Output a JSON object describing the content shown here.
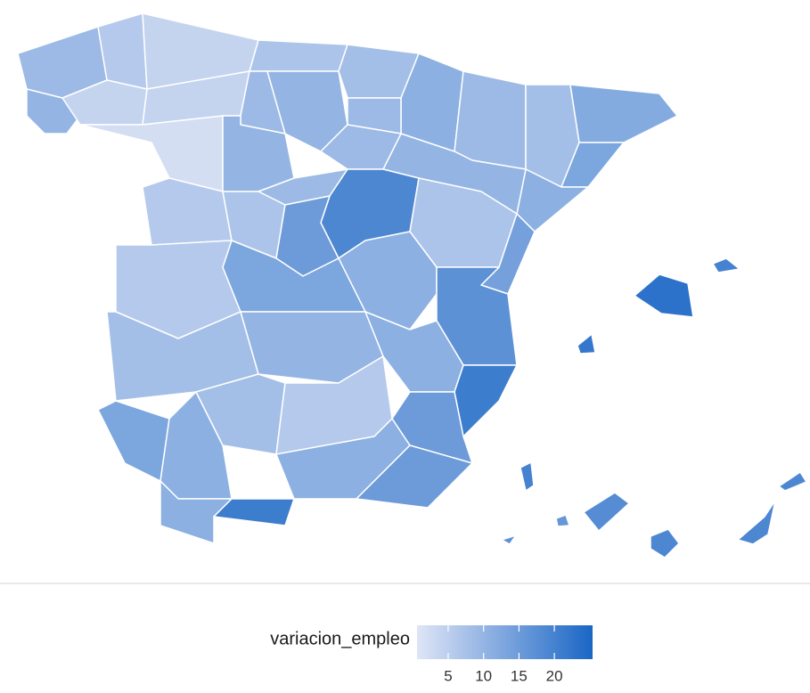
{
  "chart_data": {
    "type": "choropleth",
    "legend_title": "variacion_empleo",
    "clim": [
      0.6,
      25.4
    ],
    "cticks": [
      5,
      10,
      15,
      20
    ],
    "color_low": "#dfe5f6",
    "color_high": "#1a66c5",
    "border_color": "#ffffff",
    "values": [
      9,
      6,
      10,
      4,
      4,
      4,
      2,
      7,
      9,
      10,
      8,
      11,
      9,
      9,
      8,
      12,
      13,
      11,
      10,
      10,
      9,
      9,
      6,
      7,
      19,
      7,
      15,
      14,
      11,
      17,
      6,
      13,
      8,
      10,
      11,
      21,
      15,
      13,
      11,
      8,
      6,
      11,
      15,
      11,
      21,
      23,
      20,
      22,
      20,
      18,
      19,
      16,
      17,
      19,
      19
    ]
  }
}
